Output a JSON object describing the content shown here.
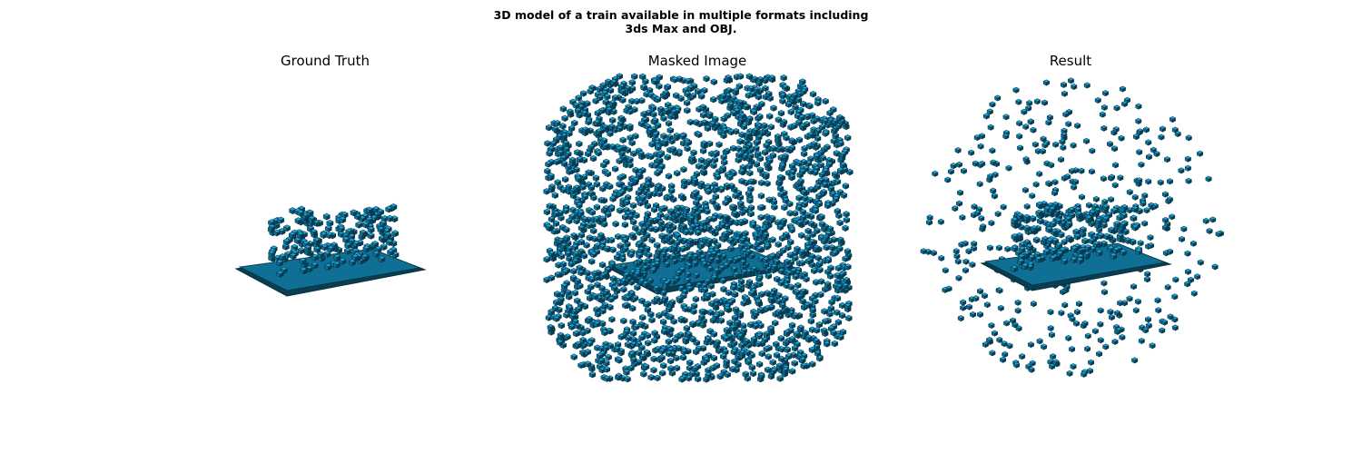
{
  "figure": {
    "title": "3D model of a train available in multiple formats including\n3ds Max and OBJ."
  },
  "panels": [
    {
      "id": "ground_truth",
      "title": "Ground Truth"
    },
    {
      "id": "masked_image",
      "title": "Masked Image"
    },
    {
      "id": "result",
      "title": "Result"
    }
  ],
  "colors": {
    "voxel_top": "#1aa3d9",
    "voxel_side": "#0f6f95",
    "voxel_dark": "#0a3d52",
    "voxel_edge": "#06303f"
  }
}
